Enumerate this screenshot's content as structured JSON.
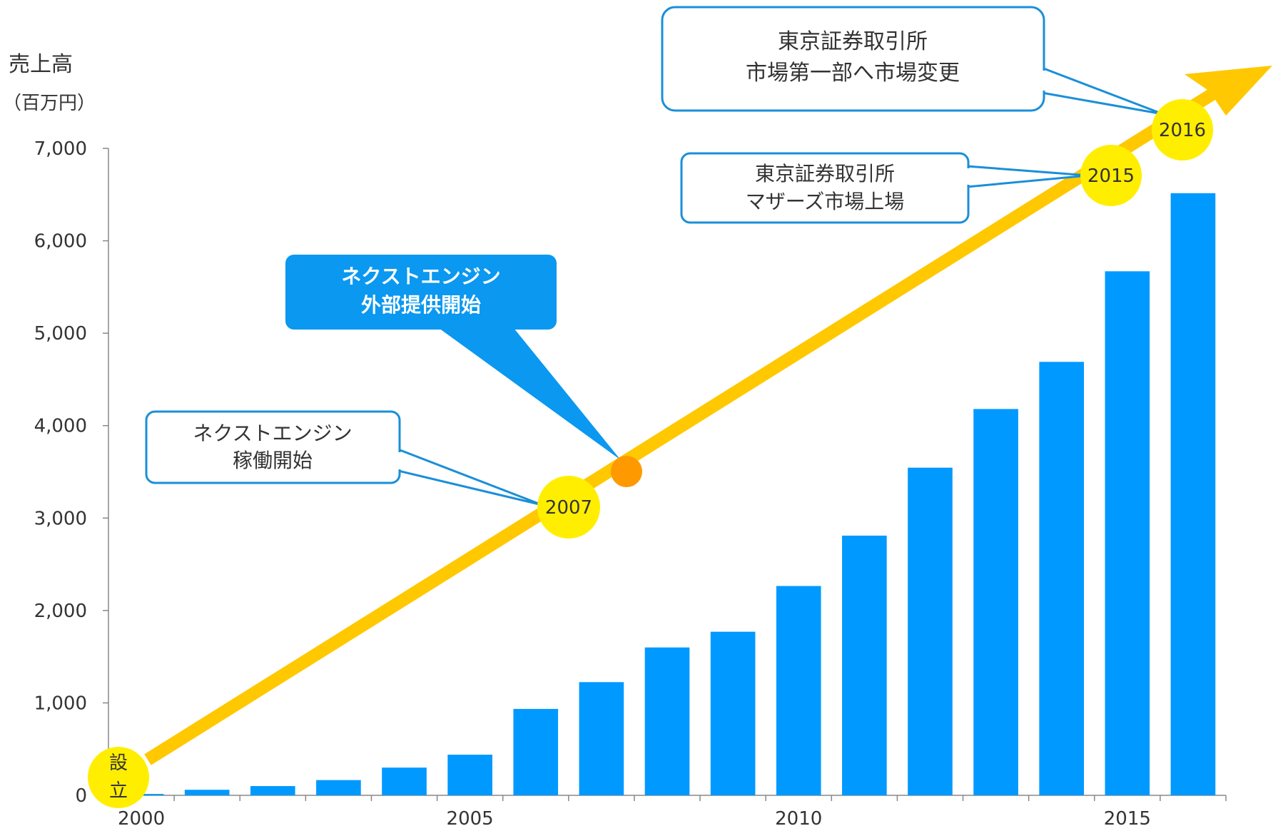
{
  "chart_data": {
    "type": "bar",
    "ylabel": "売上高",
    "yunit": "（百万円）",
    "ylim": [
      0,
      7000
    ],
    "yticks": [
      "0",
      "1,000",
      "2,000",
      "3,000",
      "4,000",
      "5,000",
      "6,000",
      "7,000"
    ],
    "xtick_labels": [
      "2000",
      "2005",
      "2010",
      "2015"
    ],
    "categories": [
      "2000",
      "2001",
      "2002",
      "2003",
      "2004",
      "2005",
      "2006",
      "2007",
      "2008",
      "2009",
      "2010",
      "2011",
      "2012",
      "2013",
      "2014",
      "2015",
      "2016"
    ],
    "values": [
      15,
      60,
      100,
      165,
      300,
      440,
      935,
      1225,
      1600,
      1770,
      2265,
      2810,
      3545,
      4180,
      4690,
      5670,
      6515
    ],
    "legend": "none",
    "grid": false,
    "colors": {
      "bar": "#0099ff",
      "arrow": "#ffc800",
      "milestone": "#ffee00",
      "milestone_orange": "#ff9900",
      "callout_border": "#1a8fd8",
      "callout_fill_highlight": "#0a98f0"
    }
  },
  "milestones": {
    "founded": {
      "line1": "設",
      "line2": "立"
    },
    "y2007": "2007",
    "y2015": "2015",
    "y2016": "2016"
  },
  "callouts": {
    "engine_start": {
      "line1": "ネクストエンジン",
      "line2": "稼働開始"
    },
    "engine_external": {
      "line1": "ネクストエンジン",
      "line2": "外部提供開始"
    },
    "mothers": {
      "line1": "東京証券取引所",
      "line2": "マザーズ市場上場"
    },
    "first_section": {
      "line1": "東京証券取引所",
      "line2": "市場第一部へ市場変更"
    }
  }
}
